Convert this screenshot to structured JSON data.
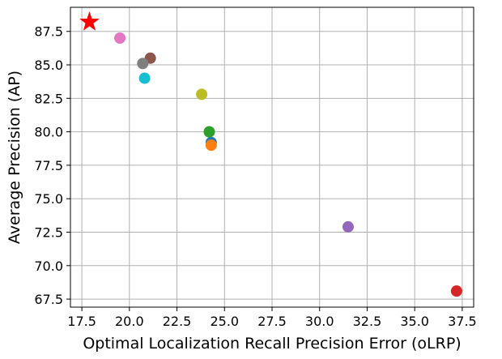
{
  "chart_data": {
    "type": "scatter",
    "title": "",
    "xlabel": "Optimal Localization Recall Precision Error (oLRP)",
    "ylabel": "Average Precision (AP)",
    "xlim": [
      16.9,
      38.1
    ],
    "ylim": [
      66.9,
      89.3
    ],
    "xticks": [
      "17.5",
      "20.0",
      "22.5",
      "25.0",
      "27.5",
      "30.0",
      "32.5",
      "35.0",
      "37.5"
    ],
    "yticks": [
      "67.5",
      "70.0",
      "72.5",
      "75.0",
      "77.5",
      "80.0",
      "82.5",
      "85.0",
      "87.5"
    ],
    "grid": true,
    "legend": "none",
    "points": [
      {
        "x": 24.3,
        "y": 79.2,
        "color": "#1f77b4",
        "marker": "circle"
      },
      {
        "x": 24.3,
        "y": 79.0,
        "color": "#ff7f0e",
        "marker": "circle"
      },
      {
        "x": 24.2,
        "y": 80.0,
        "color": "#2ca02c",
        "marker": "circle"
      },
      {
        "x": 37.2,
        "y": 68.1,
        "color": "#d62728",
        "marker": "circle"
      },
      {
        "x": 31.5,
        "y": 72.9,
        "color": "#9467bd",
        "marker": "circle"
      },
      {
        "x": 21.1,
        "y": 85.5,
        "color": "#8c564b",
        "marker": "circle"
      },
      {
        "x": 19.5,
        "y": 87.0,
        "color": "#e377c2",
        "marker": "circle"
      },
      {
        "x": 20.7,
        "y": 85.1,
        "color": "#7f7f7f",
        "marker": "circle"
      },
      {
        "x": 23.8,
        "y": 82.8,
        "color": "#bcbd22",
        "marker": "circle"
      },
      {
        "x": 20.8,
        "y": 84.0,
        "color": "#17becf",
        "marker": "circle"
      },
      {
        "x": 17.9,
        "y": 88.2,
        "color": "#ff0000",
        "marker": "star"
      }
    ]
  }
}
